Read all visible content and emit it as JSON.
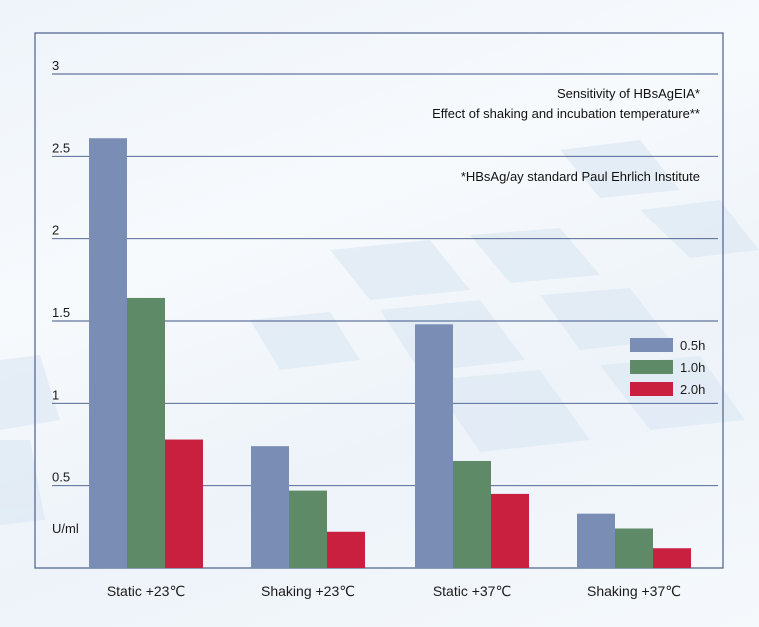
{
  "chart_data": {
    "type": "bar",
    "categories": [
      "Static +23℃",
      "Shaking +23℃",
      "Static +37℃",
      "Shaking +37℃"
    ],
    "series": [
      {
        "name": "0.5h",
        "values": [
          2.61,
          0.74,
          1.48,
          0.33
        ],
        "color": "#7a8db5"
      },
      {
        "name": "1.0h",
        "values": [
          1.64,
          0.47,
          0.65,
          0.24
        ],
        "color": "#5e8a68"
      },
      {
        "name": "2.0h",
        "values": [
          0.78,
          0.22,
          0.45,
          0.12
        ],
        "color": "#c8203e"
      }
    ],
    "ylim": [
      0,
      3
    ],
    "yticks": [
      "3",
      "2.5",
      "2",
      "1.5",
      "1",
      "0.5"
    ],
    "ytick_values": [
      3,
      2.5,
      2,
      1.5,
      1,
      0.5
    ],
    "ylabel": "U/ml",
    "annotations": [
      "Sensitivity of HBsAgEIA*",
      "Effect of shaking and incubation temperature**",
      "*HBsAg/ay standard Paul Ehrlich Institute"
    ],
    "legend_position": "right",
    "grid": true,
    "frame_color": "#4a5f8a",
    "grid_color": "#3e5586"
  }
}
